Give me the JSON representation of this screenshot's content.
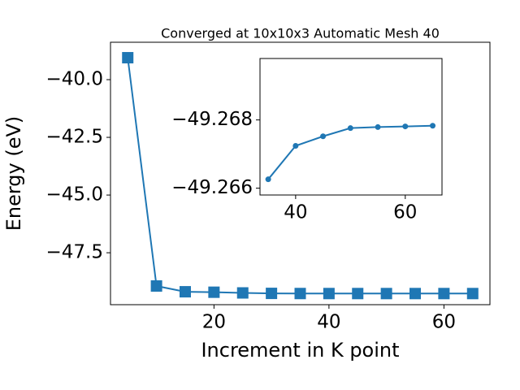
{
  "chart_data": [
    {
      "type": "line",
      "title": "Converged at 10x10x3 Automatic Mesh 40",
      "xlabel": "Increment in K point",
      "ylabel": "Energy (eV)",
      "x": [
        5,
        10,
        15,
        20,
        25,
        30,
        35,
        40,
        45,
        50,
        55,
        60,
        65
      ],
      "series": [
        {
          "color": "#1f77b4",
          "marker": "square",
          "values": [
            -39.05,
            -48.94,
            -49.19,
            -49.21,
            -49.24,
            -49.26,
            -49.2663,
            -49.2672,
            -49.2675,
            -49.2678,
            -49.2678,
            -49.2678,
            -49.2678
          ]
        }
      ],
      "xlim": [
        2,
        68
      ],
      "ylim": [
        -49.75,
        -38.38
      ],
      "xticks": [
        20,
        40,
        60
      ],
      "yticks": [
        {
          "value": -40.0,
          "label": "−40.0"
        },
        {
          "value": -42.5,
          "label": "−42.5"
        },
        {
          "value": -45.0,
          "label": "−45.0"
        },
        {
          "value": -47.5,
          "label": "−47.5"
        }
      ]
    },
    {
      "type": "line",
      "x": [
        35,
        40,
        45,
        50,
        55,
        60,
        65
      ],
      "series": [
        {
          "color": "#1f77b4",
          "marker": "circle",
          "values": [
            -49.26626,
            -49.26724,
            -49.26752,
            -49.26776,
            -49.26779,
            -49.26781,
            -49.26783
          ]
        }
      ],
      "xlim": [
        33.5,
        66.7
      ],
      "ylim": [
        -49.2658,
        -49.2698
      ],
      "yinverted": true,
      "xticks": [
        40,
        60
      ],
      "yticks": [
        {
          "value": -49.268,
          "label": "−49.268"
        },
        {
          "value": -49.266,
          "label": "−49.266"
        }
      ]
    }
  ]
}
